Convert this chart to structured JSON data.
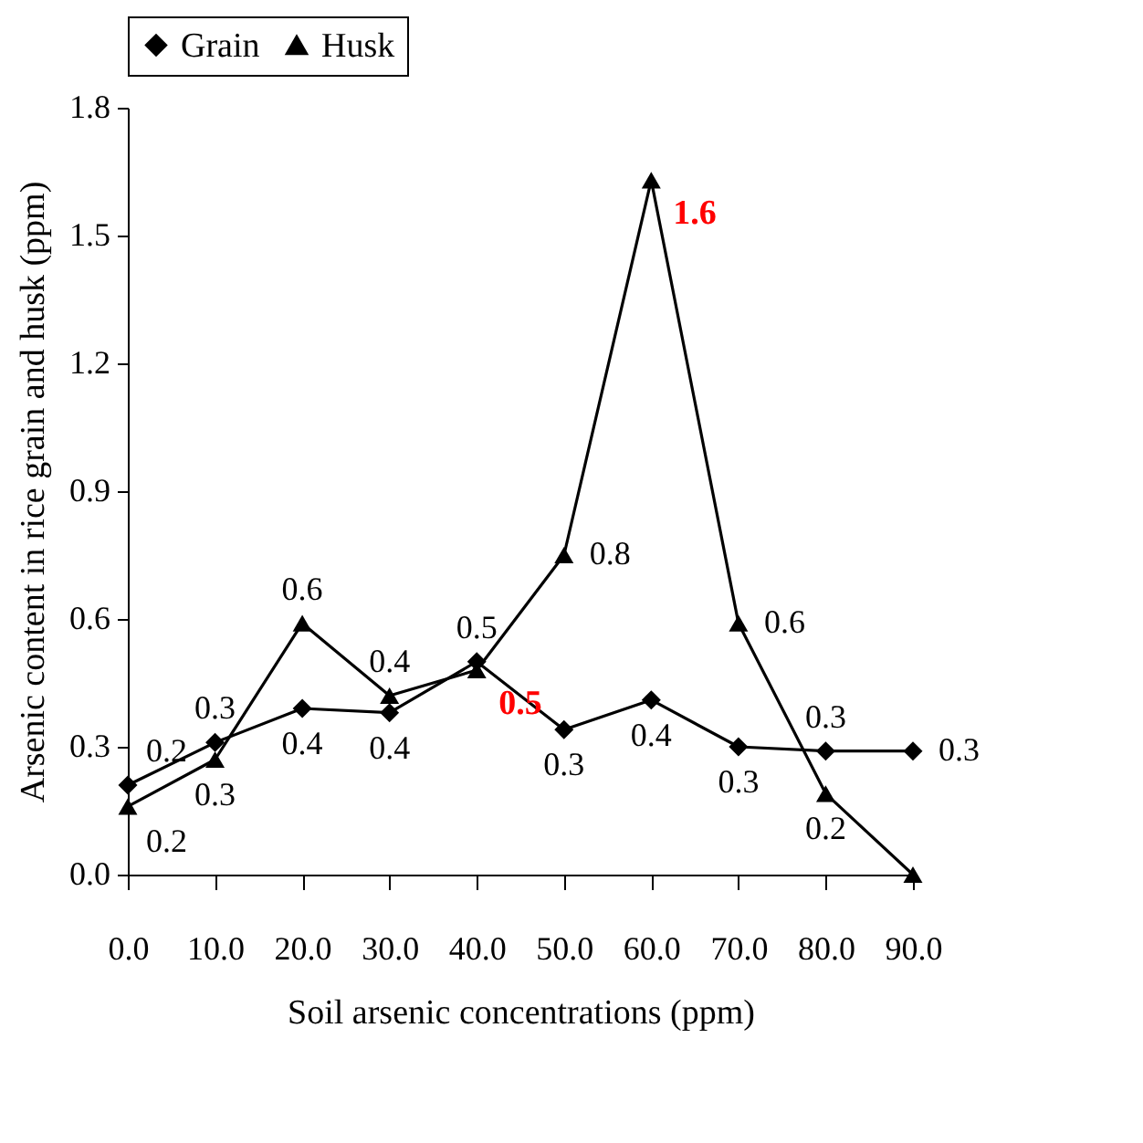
{
  "chart_data": {
    "type": "line",
    "xlabel": "Soil arsenic concentrations (ppm)",
    "ylabel": "Arsenic content in rice grain and husk (ppm)",
    "categories": [
      "0.0",
      "10.0",
      "20.0",
      "30.0",
      "40.0",
      "50.0",
      "60.0",
      "70.0",
      "80.0",
      "90.0"
    ],
    "series": [
      {
        "name": "Grain",
        "color": "#000000",
        "marker": "diamond",
        "values": [
          0.21,
          0.31,
          0.39,
          0.38,
          0.5,
          0.34,
          0.41,
          0.3,
          0.29,
          0.29
        ],
        "value_labels": [
          "0.2",
          "0.3",
          "0.4",
          "0.4",
          "0.5",
          "0.3",
          "0.4",
          "0.3",
          "0.3",
          "0.3"
        ]
      },
      {
        "name": "Husk",
        "color": "#000000",
        "marker": "triangle",
        "values": [
          0.16,
          0.27,
          0.59,
          0.42,
          0.48,
          0.75,
          1.63,
          0.59,
          0.19,
          0
        ],
        "value_labels": [
          "0.2",
          "0.3",
          "0.6",
          "0.4",
          null,
          "0.8",
          null,
          "0.6",
          "0.2",
          null
        ]
      }
    ],
    "annotations": [
      {
        "text": "0.5",
        "x": "40.0",
        "y": 0.48
      },
      {
        "text": "1.6",
        "x": "60.0",
        "y": 1.63
      }
    ],
    "ylim": [
      0,
      1.8
    ],
    "yticks": [
      {
        "value": 0,
        "label": "0.0"
      },
      {
        "value": 0.3,
        "label": "0.3"
      },
      {
        "value": 0.6,
        "label": "0.6"
      },
      {
        "value": 0.9,
        "label": "0.9"
      },
      {
        "value": 1.2,
        "label": "1.2"
      },
      {
        "value": 1.5,
        "label": "1.5"
      },
      {
        "value": 1.8,
        "label": "1.8"
      }
    ],
    "grid": false,
    "legend": "top",
    "line_style": "solid"
  }
}
